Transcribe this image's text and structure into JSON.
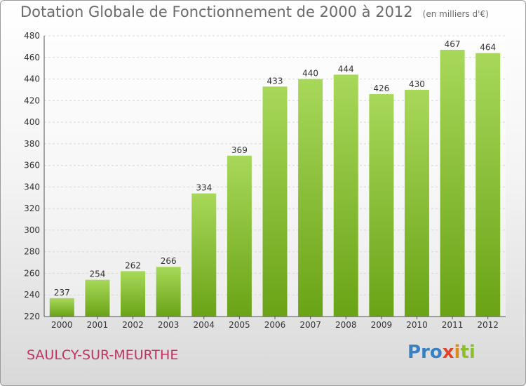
{
  "header": {
    "title": "Dotation Globale de Fonctionnement de 2000 à 2012",
    "subtitle": "(en milliers d'€)"
  },
  "footer": {
    "commune": "SAULCY-SUR-MEURTHE",
    "logo": {
      "p": "Pro",
      "x": "x",
      "i": "i",
      "ti": "ti"
    }
  },
  "colors": {
    "bar_light": "#a8d85a",
    "bar_dark": "#6aa316",
    "grid": "#d8d8d8",
    "commune": "#c4305e"
  },
  "chart_data": {
    "type": "bar",
    "title": "Dotation Globale de Fonctionnement de 2000 à 2012",
    "subtitle": "(en milliers d'€)",
    "xlabel": "",
    "ylabel": "",
    "categories": [
      "2000",
      "2001",
      "2002",
      "2003",
      "2004",
      "2005",
      "2006",
      "2007",
      "2008",
      "2009",
      "2010",
      "2011",
      "2012"
    ],
    "values": [
      237,
      254,
      262,
      266,
      334,
      369,
      433,
      440,
      444,
      426,
      430,
      467,
      464
    ],
    "ylim": [
      220,
      480
    ],
    "yticks": [
      220,
      240,
      260,
      280,
      300,
      320,
      340,
      360,
      380,
      400,
      420,
      440,
      460,
      480
    ],
    "grid": true
  }
}
